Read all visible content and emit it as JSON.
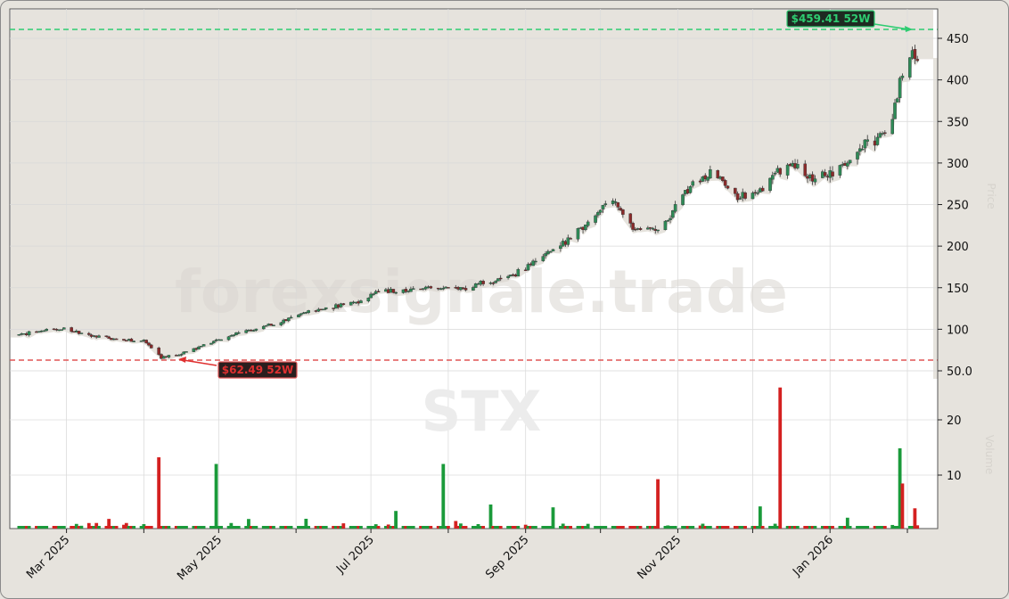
{
  "chart_data": {
    "type": "candlestick",
    "symbol": "STX",
    "watermark": "forexsignale.trade",
    "title": "",
    "xlabel": "",
    "ylabel_price": "Price",
    "ylabel_volume": "Volume",
    "price_axis": {
      "ticks": [
        50.0,
        100,
        150,
        200,
        250,
        300,
        350,
        400,
        450
      ],
      "tick_labels": [
        "50.0",
        "100",
        "150",
        "200",
        "250",
        "300",
        "350",
        "400",
        "450"
      ],
      "ylim": [
        40,
        480
      ],
      "position": "right"
    },
    "volume_axis": {
      "scale": "log",
      "ticks": [
        10,
        20
      ],
      "tick_labels": [
        "10",
        "20"
      ],
      "position": "right"
    },
    "x_axis": {
      "tick_labels": [
        "Mar 2025",
        "May 2025",
        "Jul 2025",
        "Sep 2025",
        "Nov 2025",
        "Jan 2026"
      ],
      "minor_ticks": [
        "Apr 2025",
        "Jun 2025",
        "Aug 2025",
        "Oct 2025",
        "Dec 2025",
        "Feb 2026"
      ],
      "label_rotation": 45
    },
    "grid": true,
    "colors": {
      "up": "#1a9a3a",
      "down": "#d42020",
      "candle_up": "#2e8b57",
      "candle_down": "#8b2a2a",
      "high_line": "#2ecc71",
      "low_line": "#e05555",
      "bg_above": "#e6e3dd",
      "bg_plot": "#ffffff"
    },
    "annotations": [
      {
        "label": "$459.41 52W",
        "type": "52-week high",
        "value": 459.41,
        "color": "#2ecc71"
      },
      {
        "label": "$62.49 52W",
        "type": "52-week low",
        "value": 62.49,
        "color": "#e05555"
      }
    ],
    "price_series_approx": {
      "dates": [
        "2025-02-10",
        "2025-02-20",
        "2025-03-01",
        "2025-03-10",
        "2025-03-20",
        "2025-04-01",
        "2025-04-08",
        "2025-04-15",
        "2025-04-25",
        "2025-05-05",
        "2025-05-15",
        "2025-05-25",
        "2025-06-05",
        "2025-06-15",
        "2025-06-25",
        "2025-07-05",
        "2025-07-15",
        "2025-07-25",
        "2025-08-05",
        "2025-08-15",
        "2025-08-25",
        "2025-09-05",
        "2025-09-15",
        "2025-09-25",
        "2025-10-05",
        "2025-10-15",
        "2025-10-25",
        "2025-11-05",
        "2025-11-15",
        "2025-11-25",
        "2025-12-05",
        "2025-12-15",
        "2025-12-25",
        "2026-01-05",
        "2026-01-15",
        "2026-01-25",
        "2026-02-01",
        "2026-02-05"
      ],
      "close": [
        93,
        99,
        100,
        92,
        88,
        86,
        66,
        70,
        80,
        92,
        100,
        108,
        120,
        127,
        133,
        146,
        147,
        150,
        148,
        156,
        162,
        182,
        200,
        226,
        258,
        218,
        222,
        268,
        292,
        258,
        270,
        300,
        282,
        292,
        320,
        340,
        440,
        425
      ]
    },
    "volume_series_approx": {
      "note": "per-day volume bars, log scale, green=up day, red=down day",
      "notable": [
        {
          "date": "2025-04-07",
          "value": 12.5,
          "direction": "down"
        },
        {
          "date": "2025-04-30",
          "value": 11.5,
          "direction": "up"
        },
        {
          "date": "2025-07-30",
          "value": 11.5,
          "direction": "up"
        },
        {
          "date": "2025-10-24",
          "value": 9.5,
          "direction": "down"
        },
        {
          "date": "2025-12-12",
          "value": 30,
          "direction": "down"
        },
        {
          "date": "2026-01-29",
          "value": 14,
          "direction": "up"
        },
        {
          "date": "2026-01-30",
          "value": 9,
          "direction": "down"
        }
      ]
    }
  }
}
